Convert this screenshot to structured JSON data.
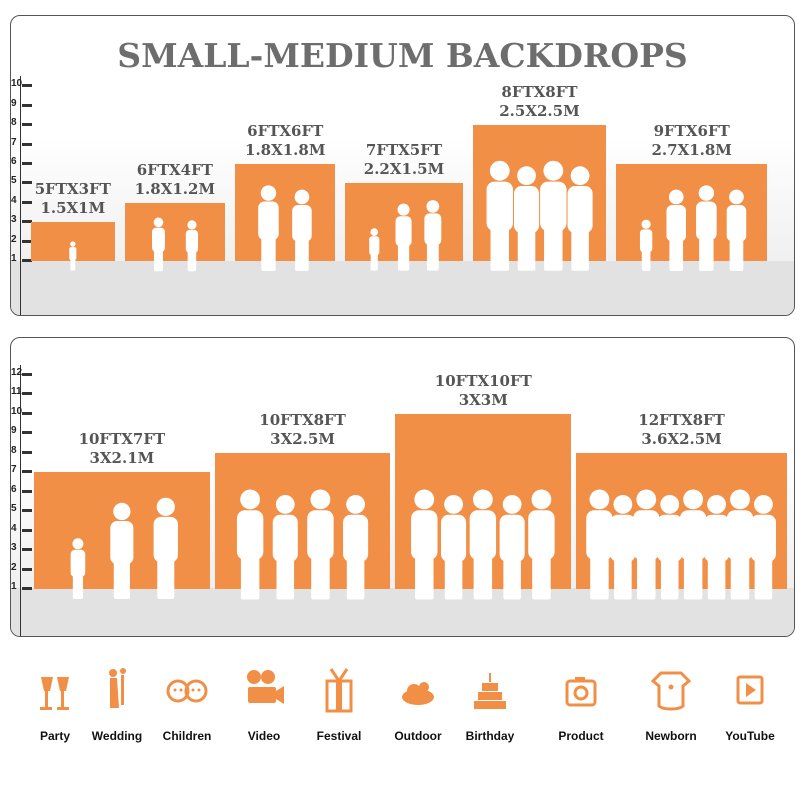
{
  "accent_color": "#f28f47",
  "top_panel": {
    "title": "SMALL-MEDIUM BACKDROPS",
    "ticks": [
      "1",
      "2",
      "3",
      "4",
      "5",
      "6",
      "7",
      "8",
      "9",
      "10"
    ],
    "backdrops": [
      {
        "ft": "5FTX3FT",
        "m": "1.5X1M",
        "width_ft": 5,
        "height_ft": 3,
        "people": 1
      },
      {
        "ft": "6FTX4FT",
        "m": "1.8X1.2M",
        "width_ft": 6,
        "height_ft": 4,
        "people": 2
      },
      {
        "ft": "6FTX6FT",
        "m": "1.8X1.8M",
        "width_ft": 6,
        "height_ft": 6,
        "people": 2
      },
      {
        "ft": "7FTX5FT",
        "m": "2.2X1.5M",
        "width_ft": 7,
        "height_ft": 5,
        "people": 3
      },
      {
        "ft": "8FTX8FT",
        "m": "2.5X2.5M",
        "width_ft": 8,
        "height_ft": 8,
        "people": 4
      },
      {
        "ft": "9FTX6FT",
        "m": "2.7X1.8M",
        "width_ft": 9,
        "height_ft": 6,
        "people": 4
      }
    ]
  },
  "bottom_panel": {
    "ticks": [
      "1",
      "2",
      "3",
      "4",
      "5",
      "6",
      "7",
      "8",
      "9",
      "10",
      "11",
      "12"
    ],
    "backdrops": [
      {
        "ft": "10FTX7FT",
        "m": "3X2.1M",
        "width_ft": 10,
        "height_ft": 7,
        "people": 3
      },
      {
        "ft": "10FTX8FT",
        "m": "3X2.5M",
        "width_ft": 10,
        "height_ft": 8,
        "people": 4
      },
      {
        "ft": "10FTX10FT",
        "m": "3X3M",
        "width_ft": 10,
        "height_ft": 10,
        "people": 5
      },
      {
        "ft": "12FTX8FT",
        "m": "3.6X2.5M",
        "width_ft": 12,
        "height_ft": 8,
        "people": 8
      }
    ]
  },
  "uses": [
    {
      "label": "Party",
      "icon": "champagne-glasses-icon"
    },
    {
      "label": "Wedding",
      "icon": "wedding-couple-icon"
    },
    {
      "label": "Children",
      "icon": "children-faces-icon"
    },
    {
      "label": "Video",
      "icon": "film-camera-icon"
    },
    {
      "label": "Festival",
      "icon": "gift-box-icon"
    },
    {
      "label": "Outdoor",
      "icon": "cloud-icon"
    },
    {
      "label": "Birthday",
      "icon": "birthday-cake-icon"
    },
    {
      "label": "Product",
      "icon": "camera-icon"
    },
    {
      "label": "Newborn",
      "icon": "baby-onesie-icon"
    },
    {
      "label": "YouTube",
      "icon": "play-button-icon"
    }
  ]
}
